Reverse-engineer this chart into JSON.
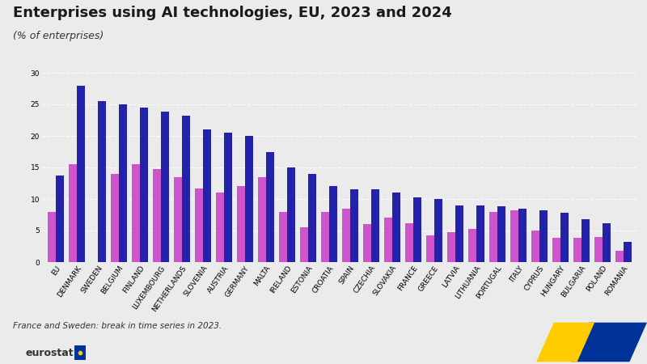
{
  "title": "Enterprises using AI technologies, EU, 2023 and 2024",
  "subtitle": "(% of enterprises)",
  "footnote": "France and Sweden: break in time series in 2023.",
  "categories": [
    "EU",
    "DENMARK",
    "SWEDEN",
    "BELGIUM",
    "FINLAND",
    "LUXEMBOURG",
    "NETHERLANDS",
    "SLOVENIA",
    "AUSTRIA",
    "GERMANY",
    "MALTA",
    "IRELAND",
    "ESTONIA",
    "CROATIA",
    "SPAIN",
    "CZECHIA",
    "SLOVAKIA",
    "FRANCE",
    "GREECE",
    "LATVIA",
    "LITHUANIA",
    "PORTUGAL",
    "ITALY",
    "CYPRUS",
    "HUNGARY",
    "BULGARIA",
    "POLAND",
    "ROMANIA"
  ],
  "values_2023": [
    8.0,
    15.5,
    null,
    14.0,
    15.5,
    14.7,
    13.5,
    11.7,
    11.0,
    12.0,
    13.5,
    8.0,
    5.5,
    8.0,
    8.5,
    6.0,
    7.0,
    6.2,
    4.2,
    4.7,
    5.2,
    8.0,
    8.2,
    5.0,
    3.9,
    3.8,
    4.0,
    1.8
  ],
  "values_2024": [
    13.7,
    28.0,
    25.5,
    25.0,
    24.5,
    23.8,
    23.2,
    21.0,
    20.5,
    20.0,
    17.5,
    15.0,
    14.0,
    12.0,
    11.5,
    11.5,
    11.0,
    10.2,
    10.0,
    9.0,
    9.0,
    8.8,
    8.5,
    8.2,
    7.8,
    6.8,
    6.2,
    3.2
  ],
  "color_2023": "#cc55cc",
  "color_2024": "#2222aa",
  "ylim": [
    0,
    30
  ],
  "yticks": [
    0,
    5,
    10,
    15,
    20,
    25,
    30
  ],
  "background_color": "#ebebeb",
  "plot_background": "#ebebeb",
  "grid_color": "#ffffff",
  "title_fontsize": 13,
  "subtitle_fontsize": 9,
  "tick_fontsize": 6.5,
  "legend_fontsize": 8.5,
  "footnote_fontsize": 7.5
}
